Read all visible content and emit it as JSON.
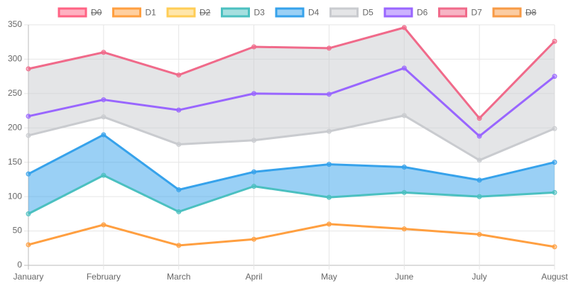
{
  "chart_data": {
    "type": "line",
    "categories": [
      "January",
      "February",
      "March",
      "April",
      "May",
      "June",
      "July",
      "August"
    ],
    "ylim": [
      0,
      350
    ],
    "yticks": [
      0,
      50,
      100,
      150,
      200,
      250,
      300,
      350
    ],
    "grid": true,
    "legend": "top",
    "series": [
      {
        "name": "D0",
        "color": "#ff6384",
        "hidden": true
      },
      {
        "name": "D1",
        "color": "#ff9f40",
        "values": [
          30,
          59,
          29,
          38,
          60,
          53,
          45,
          27
        ]
      },
      {
        "name": "D2",
        "color": "#ffcd56",
        "hidden": true
      },
      {
        "name": "D3",
        "color": "#4bc0c0",
        "values": [
          75,
          131,
          78,
          115,
          99,
          106,
          100,
          106
        ]
      },
      {
        "name": "D4",
        "color": "#36a2eb",
        "values": [
          133,
          190,
          110,
          136,
          147,
          143,
          124,
          150
        ],
        "fill_to": 3
      },
      {
        "name": "D5",
        "color": "#c9cbcf",
        "values": [
          189,
          216,
          176,
          182,
          195,
          218,
          153,
          199
        ],
        "fill_to": 7
      },
      {
        "name": "D6",
        "color": "#9966ff",
        "values": [
          217,
          241,
          226,
          250,
          249,
          287,
          188,
          275
        ]
      },
      {
        "name": "D7",
        "color": "#f06a8a",
        "values": [
          286,
          310,
          277,
          318,
          316,
          346,
          214,
          326
        ]
      },
      {
        "name": "D8",
        "color": "#f79a45",
        "hidden": true
      }
    ]
  }
}
